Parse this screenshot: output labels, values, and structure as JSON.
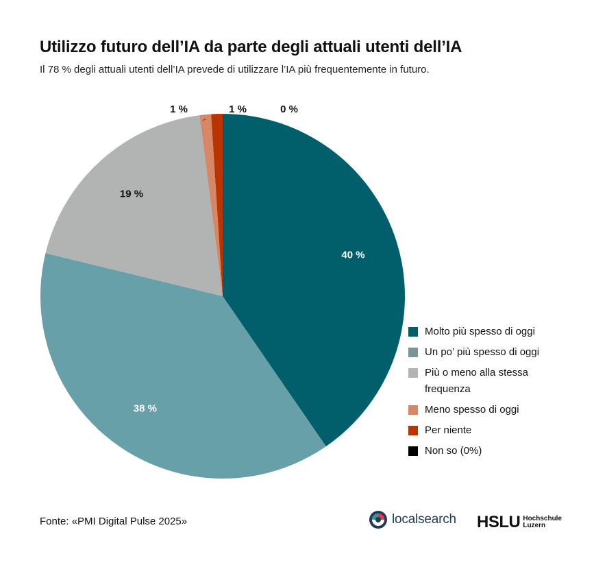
{
  "header": {
    "title": "Utilizzo futuro dell’IA da parte degli attuali utenti dell’IA",
    "subtitle": "Il 78 % degli attuali utenti dell’IA prevede di utilizzare l’IA più frequentemente in futuro."
  },
  "chart_data": {
    "type": "pie",
    "slices": [
      {
        "label": "Molto più spesso di oggi",
        "value": 40,
        "display": "40 %",
        "color": "#005f6b",
        "label_color": "#ffffff"
      },
      {
        "label": "Un po’ più spesso di oggi",
        "value": 38,
        "display": "38 %",
        "color": "#68a0a9",
        "label_color": "#ffffff"
      },
      {
        "label": "Più o meno alla stessa frequenza",
        "value": 19,
        "display": "19 %",
        "color": "#b2b4b3",
        "label_color": "#111111"
      },
      {
        "label": "Meno spesso di oggi",
        "value": 1,
        "display": "1 %",
        "color": "#d88766",
        "label_color": "#111111"
      },
      {
        "label": "Per niente",
        "value": 1,
        "display": "1 %",
        "color": "#b83400",
        "label_color": "#111111"
      },
      {
        "label": "Non so (0%)",
        "value": 0,
        "display": "0 %",
        "color": "#000000",
        "label_color": "#111111"
      }
    ],
    "legend_position": "right-bottom"
  },
  "legend": {
    "items": [
      {
        "label": "Molto più spesso di oggi",
        "color": "#005f6b"
      },
      {
        "label": "Un po’ più spesso di oggi",
        "color": "#7a949a"
      },
      {
        "label": "Più o meno alla stessa frequenza",
        "color": "#b2b4b3"
      },
      {
        "label": "Meno spesso di oggi",
        "color": "#d88766"
      },
      {
        "label": "Per niente",
        "color": "#b83400"
      },
      {
        "label": "Non so (0%)",
        "color": "#000000"
      }
    ]
  },
  "footer": {
    "source": "Fonte: «PMI Digital Pulse 2025»",
    "logo_localsearch": "localsearch",
    "logo_hslu": "HSLU",
    "logo_hslu_sub_1": "Hochschule",
    "logo_hslu_sub_2": "Luzern"
  }
}
